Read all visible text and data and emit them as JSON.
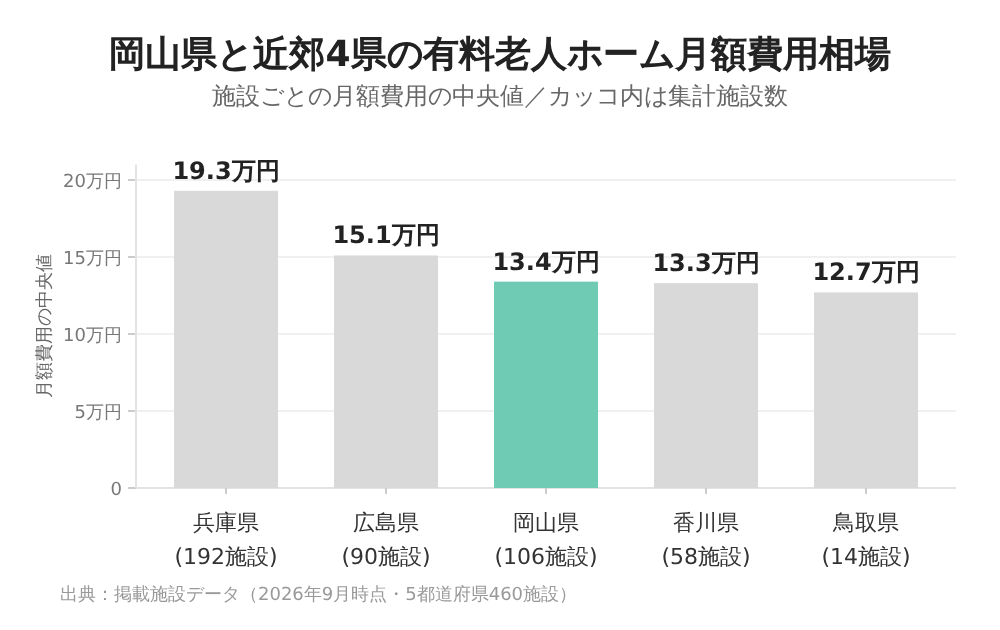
{
  "chart_data": {
    "type": "bar",
    "title": "岡山県と近郊4県の有料老人ホーム月額費用相場",
    "subtitle": "施設ごとの月額費用の中央値／カッコ内は集計施設数",
    "ylabel": "月額費用の中央値",
    "categories": [
      "兵庫県\n(192施設)",
      "広島県\n(90施設)",
      "岡山県\n(106施設)",
      "香川県\n(58施設)",
      "鳥取県\n(14施設)"
    ],
    "values": [
      19.3,
      15.1,
      13.4,
      13.3,
      12.7
    ],
    "colors": [
      "#d9d9d9",
      "#d9d9d9",
      "#6fcbb4",
      "#d9d9d9",
      "#d9d9d9"
    ],
    "value_labels": [
      "19.3万円",
      "15.1万円",
      "13.4万円",
      "13.3万円",
      "12.7万円"
    ],
    "ylim": [
      0,
      21
    ],
    "yticks": [
      0,
      {
        "value": 5,
        "label": "5万円"
      },
      {
        "value": 10,
        "label": "10万円"
      },
      {
        "value": 15,
        "label": "15万円"
      },
      {
        "value": 20,
        "label": "20万円"
      }
    ],
    "grid": "y",
    "annotations": [
      "出典：掲載施設データ（2026年9月時点・5都道府県460施設）"
    ]
  }
}
